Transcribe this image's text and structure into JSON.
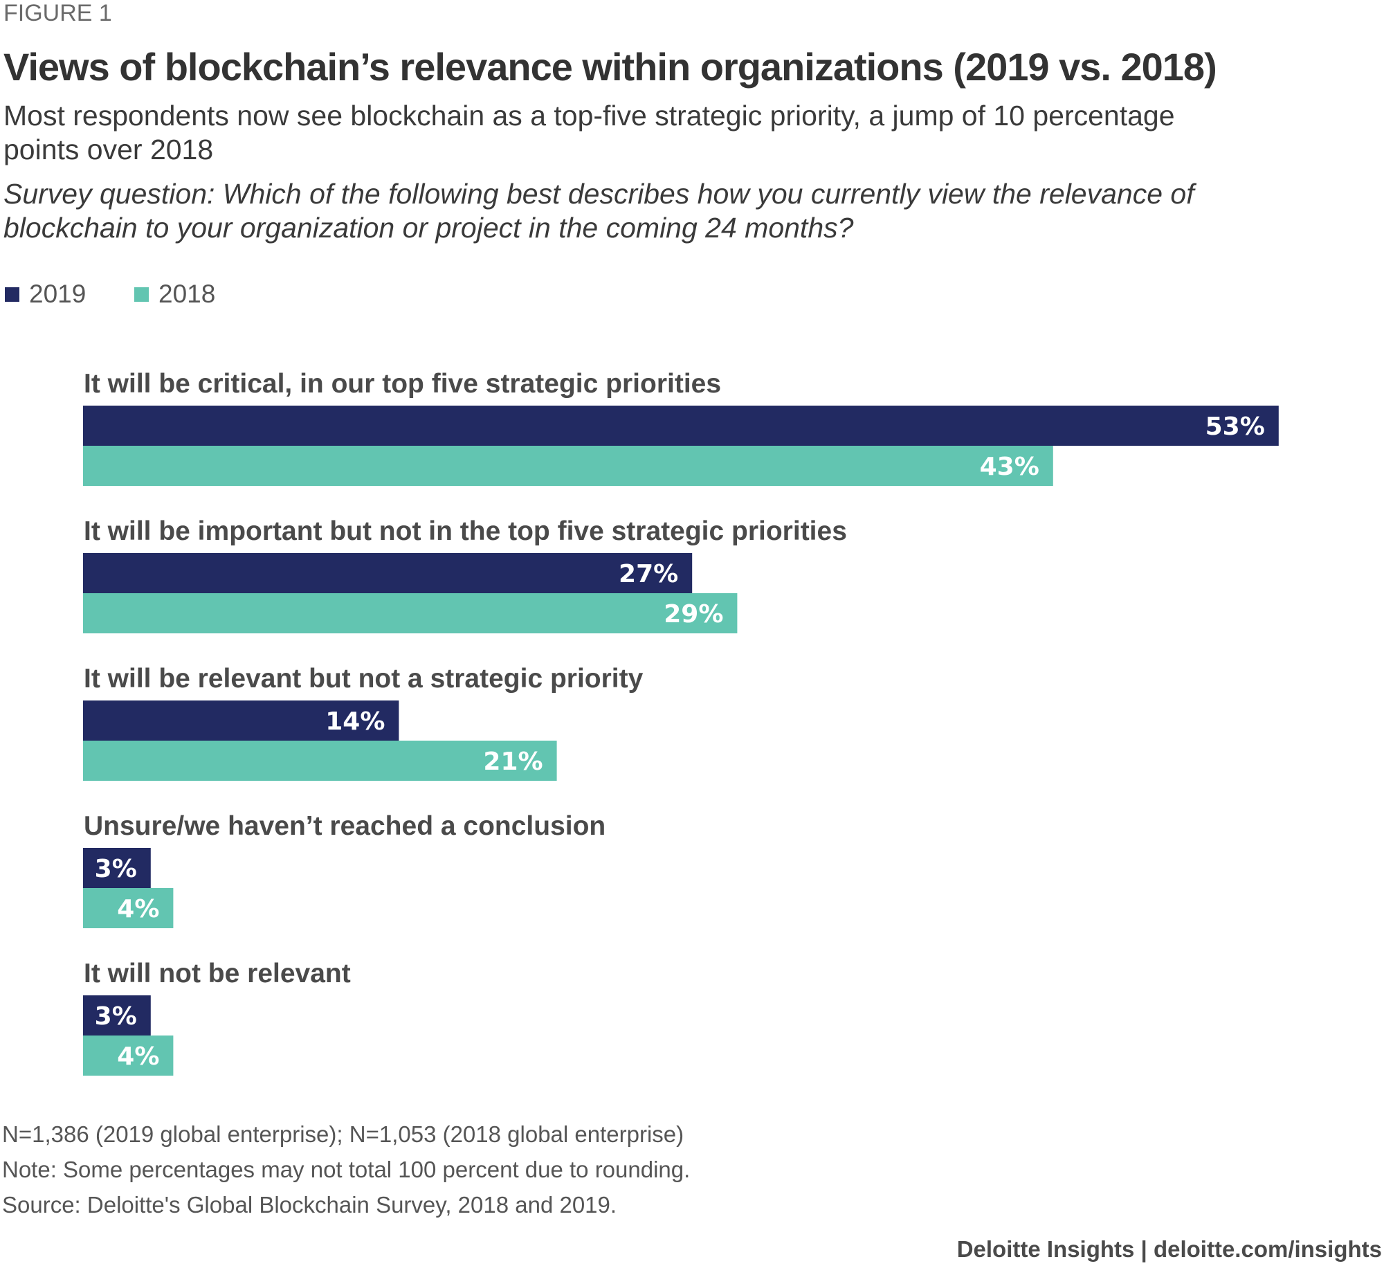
{
  "header": {
    "figure_label": "FIGURE 1",
    "title": "Views of blockchain’s relevance within organizations (2019 vs. 2018)",
    "subtitle_line1": "Most respondents now see blockchain as a top-five strategic priority, a jump of 10 percentage",
    "subtitle_line2": "points over 2018",
    "question_line1": "Survey question: Which of the following best describes how you currently view the relevance of",
    "question_line2": "blockchain to your organization or project in the coming 24 months?"
  },
  "colors": {
    "series_2019": "#222a62",
    "series_2018": "#62c5b1"
  },
  "chart_data": {
    "type": "bar",
    "orientation": "horizontal",
    "categories": [
      "It will be critical, in our top five strategic priorities",
      "It will be important but not in the top five strategic priorities",
      "It will be relevant but not a strategic priority",
      "Unsure/we haven’t reached a conclusion",
      "It will not be relevant"
    ],
    "series": [
      {
        "name": "2019",
        "values": [
          53,
          27,
          14,
          3,
          3
        ],
        "labels": [
          "53%",
          "27%",
          "14%",
          "3%",
          "3%"
        ]
      },
      {
        "name": "2018",
        "values": [
          43,
          29,
          21,
          4,
          4
        ],
        "labels": [
          "43%",
          "29%",
          "21%",
          "4%",
          "4%"
        ]
      }
    ],
    "unit": "%",
    "legend_position": "top-left",
    "grid": false
  },
  "notes": {
    "n_line": "N=1,386 (2019 global enterprise); N=1,053 (2018 global enterprise)",
    "note_line": "Note: Some percentages may not total 100 percent due to rounding.",
    "source_line": "Source: Deloitte's Global Blockchain Survey, 2018 and 2019."
  },
  "footer": {
    "brand": "Deloitte Insights | deloitte.com/insights"
  }
}
